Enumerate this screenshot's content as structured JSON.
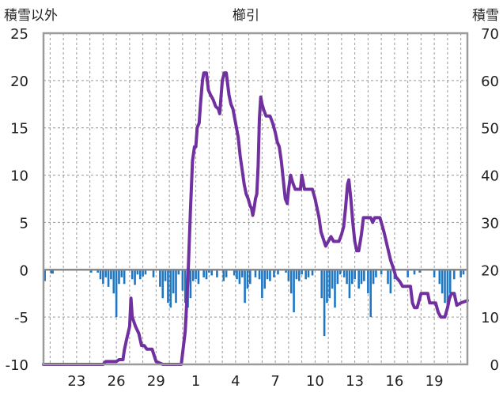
{
  "chart_data": {
    "type": "bar+line",
    "title": "櫛引",
    "left_axis": {
      "label": "積雪以外",
      "range": [
        -10,
        25
      ],
      "ticks": [
        "-10",
        "-5",
        "0",
        "5",
        "10",
        "15",
        "20",
        "25"
      ]
    },
    "right_axis": {
      "label": "積雪",
      "range": [
        0,
        70
      ],
      "ticks": [
        "0",
        "10",
        "20",
        "30",
        "40",
        "50",
        "60",
        "70"
      ]
    },
    "x_axis": {
      "range": [
        20.5,
        52.5
      ],
      "ticks": [
        {
          "x": 23,
          "label": "23"
        },
        {
          "x": 26,
          "label": "26"
        },
        {
          "x": 29,
          "label": "29"
        },
        {
          "x": 32,
          "label": "1"
        },
        {
          "x": 35,
          "label": "4"
        },
        {
          "x": 38,
          "label": "7"
        },
        {
          "x": 41,
          "label": "10"
        },
        {
          "x": 44,
          "label": "13"
        },
        {
          "x": 47,
          "label": "16"
        },
        {
          "x": 50,
          "label": "19"
        }
      ]
    },
    "grid": true,
    "colors": {
      "bars": "#1f77c4",
      "line": "#7030a0",
      "grid": "#999999",
      "frame": "#9a9a9a"
    },
    "series": [
      {
        "type": "bar",
        "axis": "left",
        "values": [
          [
            20.6,
            -1.2
          ],
          [
            21.1,
            -0.4
          ],
          [
            21.2,
            -0.4
          ],
          [
            24.1,
            -0.3
          ],
          [
            24.6,
            -0.3
          ],
          [
            24.8,
            -1.0
          ],
          [
            25.0,
            -1.5
          ],
          [
            25.2,
            -0.8
          ],
          [
            25.4,
            -1.8
          ],
          [
            25.6,
            -1.0
          ],
          [
            25.8,
            -2.5
          ],
          [
            26.0,
            -5.0
          ],
          [
            26.2,
            -1.5
          ],
          [
            26.4,
            -0.8
          ],
          [
            26.6,
            -1.5
          ],
          [
            27.2,
            -1.0
          ],
          [
            27.4,
            -1.6
          ],
          [
            27.6,
            -0.5
          ],
          [
            27.8,
            -1.0
          ],
          [
            28.0,
            -0.7
          ],
          [
            28.2,
            -0.5
          ],
          [
            28.8,
            -0.8
          ],
          [
            29.3,
            -1.8
          ],
          [
            29.5,
            -3.0
          ],
          [
            29.7,
            -1.2
          ],
          [
            29.9,
            -3.5
          ],
          [
            30.1,
            -4.0
          ],
          [
            30.3,
            -2.5
          ],
          [
            30.5,
            -3.5
          ],
          [
            30.7,
            -0.5
          ],
          [
            31.0,
            -2.2
          ],
          [
            31.2,
            -3.5
          ],
          [
            31.4,
            -4.0
          ],
          [
            31.6,
            -3.0
          ],
          [
            31.8,
            -1.2
          ],
          [
            32.0,
            -1.0
          ],
          [
            32.2,
            -1.5
          ],
          [
            32.6,
            -0.8
          ],
          [
            32.8,
            -1.0
          ],
          [
            33.0,
            -0.3
          ],
          [
            33.2,
            -0.6
          ],
          [
            33.6,
            -0.8
          ],
          [
            34.1,
            -1.2
          ],
          [
            34.3,
            -0.8
          ],
          [
            34.9,
            -0.6
          ],
          [
            35.1,
            -1.0
          ],
          [
            35.3,
            -1.5
          ],
          [
            35.5,
            -0.8
          ],
          [
            35.7,
            -3.5
          ],
          [
            35.9,
            -2.0
          ],
          [
            36.1,
            -1.5
          ],
          [
            36.5,
            -0.8
          ],
          [
            36.8,
            -1.0
          ],
          [
            37.0,
            -3.0
          ],
          [
            37.2,
            -2.0
          ],
          [
            37.4,
            -1.0
          ],
          [
            37.6,
            -1.2
          ],
          [
            37.9,
            -0.8
          ],
          [
            38.2,
            -0.5
          ],
          [
            38.8,
            -0.3
          ],
          [
            39.0,
            -1.2
          ],
          [
            39.2,
            -2.5
          ],
          [
            39.4,
            -4.5
          ],
          [
            39.6,
            -1.0
          ],
          [
            39.8,
            -1.2
          ],
          [
            40.0,
            -0.5
          ],
          [
            40.3,
            -1.0
          ],
          [
            40.5,
            -0.8
          ],
          [
            40.8,
            -0.6
          ],
          [
            41.5,
            -3.0
          ],
          [
            41.7,
            -7.0
          ],
          [
            41.9,
            -3.5
          ],
          [
            42.1,
            -3.0
          ],
          [
            42.3,
            -2.0
          ],
          [
            42.5,
            -4.0
          ],
          [
            42.7,
            -1.5
          ],
          [
            42.9,
            -0.5
          ],
          [
            43.2,
            -0.8
          ],
          [
            43.4,
            -1.5
          ],
          [
            43.6,
            -3.0
          ],
          [
            43.8,
            -1.5
          ],
          [
            44.0,
            -1.0
          ],
          [
            44.3,
            -2.0
          ],
          [
            44.5,
            -1.5
          ],
          [
            44.7,
            -1.2
          ],
          [
            45.0,
            -2.5
          ],
          [
            45.2,
            -5.0
          ],
          [
            45.4,
            -1.5
          ],
          [
            45.6,
            -0.8
          ],
          [
            46.0,
            -0.5
          ],
          [
            46.5,
            -1.5
          ],
          [
            46.7,
            -2.5
          ],
          [
            47.0,
            -1.0
          ],
          [
            48.0,
            -0.8
          ],
          [
            48.5,
            -0.5
          ],
          [
            48.9,
            -0.3
          ],
          [
            50.0,
            -0.8
          ],
          [
            50.4,
            -1.5
          ],
          [
            50.6,
            -2.5
          ],
          [
            50.8,
            -3.5
          ],
          [
            51.0,
            -4.0
          ],
          [
            51.2,
            -2.5
          ],
          [
            51.5,
            -1.0
          ],
          [
            52.0,
            -0.8
          ],
          [
            52.2,
            -0.5
          ]
        ]
      },
      {
        "type": "line",
        "axis": "right",
        "values": [
          [
            20.5,
            0
          ],
          [
            25.0,
            0
          ],
          [
            25.2,
            0.6
          ],
          [
            26.0,
            0.6
          ],
          [
            26.2,
            1.0
          ],
          [
            26.5,
            1.0
          ],
          [
            26.6,
            3.0
          ],
          [
            26.75,
            5.0
          ],
          [
            27.0,
            8.0
          ],
          [
            27.1,
            14.0
          ],
          [
            27.2,
            10.0
          ],
          [
            27.45,
            8.0
          ],
          [
            27.7,
            6.5
          ],
          [
            27.9,
            4.0
          ],
          [
            28.1,
            4.0
          ],
          [
            28.3,
            3.2
          ],
          [
            28.7,
            3.2
          ],
          [
            29.0,
            0.6
          ],
          [
            29.5,
            0
          ],
          [
            30.9,
            0
          ],
          [
            31.2,
            7.0
          ],
          [
            31.4,
            18.0
          ],
          [
            31.6,
            33.0
          ],
          [
            31.75,
            43.0
          ],
          [
            31.9,
            46.0
          ],
          [
            32.0,
            46.0
          ],
          [
            32.1,
            50.0
          ],
          [
            32.25,
            51.0
          ],
          [
            32.35,
            55.0
          ],
          [
            32.5,
            60.0
          ],
          [
            32.6,
            61.6
          ],
          [
            32.8,
            61.6
          ],
          [
            32.95,
            58.0
          ],
          [
            33.1,
            57.0
          ],
          [
            33.3,
            56.0
          ],
          [
            33.5,
            54.5
          ],
          [
            33.7,
            54.0
          ],
          [
            33.8,
            53.0
          ],
          [
            34.0,
            60.0
          ],
          [
            34.15,
            61.6
          ],
          [
            34.3,
            61.6
          ],
          [
            34.5,
            57.0
          ],
          [
            34.65,
            55.0
          ],
          [
            34.8,
            54.0
          ],
          [
            35.0,
            51.0
          ],
          [
            35.2,
            48.0
          ],
          [
            35.35,
            44.0
          ],
          [
            35.5,
            41.0
          ],
          [
            35.65,
            38.0
          ],
          [
            35.8,
            36.0
          ],
          [
            35.95,
            35.0
          ],
          [
            36.1,
            33.5
          ],
          [
            36.2,
            33.0
          ],
          [
            36.3,
            31.5
          ],
          [
            36.4,
            33.0
          ],
          [
            36.5,
            35.0
          ],
          [
            36.6,
            36.0
          ],
          [
            36.7,
            42.0
          ],
          [
            36.8,
            52.0
          ],
          [
            36.9,
            56.5
          ],
          [
            37.0,
            55.0
          ],
          [
            37.1,
            54.0
          ],
          [
            37.3,
            52.5
          ],
          [
            37.6,
            52.5
          ],
          [
            37.8,
            51.0
          ],
          [
            38.0,
            49.0
          ],
          [
            38.15,
            47.0
          ],
          [
            38.3,
            46.0
          ],
          [
            38.45,
            43.0
          ],
          [
            38.6,
            39.0
          ],
          [
            38.75,
            35.0
          ],
          [
            38.9,
            34.0
          ],
          [
            39.0,
            37.0
          ],
          [
            39.15,
            40.0
          ],
          [
            39.3,
            38.5
          ],
          [
            39.5,
            37.0
          ],
          [
            39.9,
            37.0
          ],
          [
            40.0,
            40.0
          ],
          [
            40.2,
            37.0
          ],
          [
            40.4,
            37.0
          ],
          [
            40.8,
            37.0
          ],
          [
            41.0,
            35.0
          ],
          [
            41.15,
            33.0
          ],
          [
            41.3,
            31.0
          ],
          [
            41.45,
            28.0
          ],
          [
            41.8,
            25.0
          ],
          [
            42.0,
            26.0
          ],
          [
            42.2,
            27.0
          ],
          [
            42.4,
            26.0
          ],
          [
            42.6,
            26.0
          ],
          [
            42.8,
            26.0
          ],
          [
            43.0,
            27.5
          ],
          [
            43.15,
            29.0
          ],
          [
            43.3,
            33.0
          ],
          [
            43.45,
            38.0
          ],
          [
            43.55,
            39.0
          ],
          [
            43.7,
            35.0
          ],
          [
            43.85,
            30.0
          ],
          [
            44.0,
            26.0
          ],
          [
            44.15,
            24.0
          ],
          [
            44.3,
            24.0
          ],
          [
            44.5,
            27.5
          ],
          [
            44.65,
            31.0
          ],
          [
            44.8,
            31.0
          ],
          [
            45.2,
            31.0
          ],
          [
            45.35,
            30.0
          ],
          [
            45.5,
            31.0
          ],
          [
            45.9,
            31.0
          ],
          [
            46.2,
            28.0
          ],
          [
            46.45,
            25.0
          ],
          [
            46.7,
            22.0
          ],
          [
            46.95,
            20.0
          ],
          [
            47.1,
            18.5
          ],
          [
            47.25,
            18.0
          ],
          [
            47.4,
            17.5
          ],
          [
            47.6,
            16.5
          ],
          [
            48.2,
            16.5
          ],
          [
            48.35,
            13.0
          ],
          [
            48.5,
            12.0
          ],
          [
            48.7,
            12.0
          ],
          [
            48.85,
            13.5
          ],
          [
            49.0,
            15.0
          ],
          [
            49.5,
            15.0
          ],
          [
            49.65,
            13.0
          ],
          [
            50.1,
            13.0
          ],
          [
            50.3,
            11.0
          ],
          [
            50.5,
            10.0
          ],
          [
            50.8,
            10.0
          ],
          [
            51.0,
            12.0
          ],
          [
            51.15,
            14.0
          ],
          [
            51.3,
            15.0
          ],
          [
            51.5,
            15.0
          ],
          [
            51.7,
            12.5
          ],
          [
            52.0,
            13.0
          ],
          [
            52.5,
            13.5
          ]
        ]
      }
    ]
  }
}
